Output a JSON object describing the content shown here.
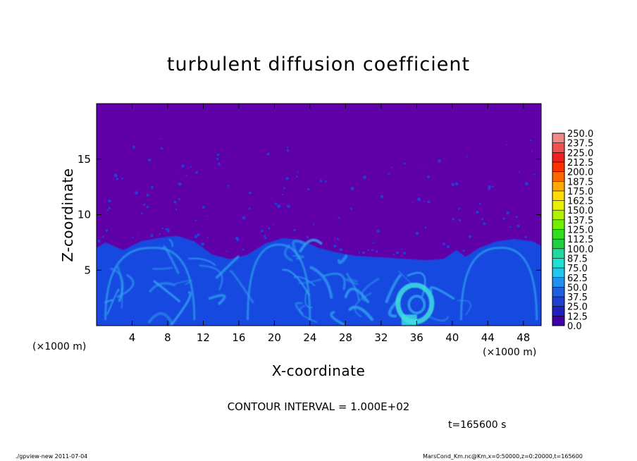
{
  "chart_data": {
    "type": "heatmap",
    "title": "turbulent diffusion coefficient",
    "xlabel": "X-coordinate",
    "ylabel": "Z-coordinate",
    "x_unit": "(×1000 m)",
    "xlim": [
      0,
      50
    ],
    "ylim": [
      0,
      20
    ],
    "x_ticks": [
      "4",
      "8",
      "12",
      "16",
      "20",
      "24",
      "28",
      "32",
      "36",
      "40",
      "44",
      "48"
    ],
    "x_tick_values": [
      4,
      8,
      12,
      16,
      20,
      24,
      28,
      32,
      36,
      40,
      44,
      48
    ],
    "y_ticks": [
      "5",
      "10",
      "15"
    ],
    "y_tick_values": [
      5,
      10,
      15
    ],
    "background_value": 0.0,
    "boundary_layer_top": [
      [
        0,
        7.0
      ],
      [
        1,
        7.5
      ],
      [
        3,
        6.8
      ],
      [
        5,
        7.6
      ],
      [
        7,
        7.9
      ],
      [
        9,
        8.1
      ],
      [
        11,
        7.6
      ],
      [
        13,
        6.4
      ],
      [
        15,
        6.0
      ],
      [
        17,
        6.4
      ],
      [
        19,
        7.4
      ],
      [
        21,
        7.9
      ],
      [
        23,
        7.7
      ],
      [
        25,
        7.0
      ],
      [
        27,
        6.6
      ],
      [
        29,
        6.3
      ],
      [
        31,
        6.2
      ],
      [
        33,
        6.1
      ],
      [
        35,
        6.0
      ],
      [
        37,
        5.9
      ],
      [
        39,
        6.0
      ],
      [
        40.5,
        6.8
      ],
      [
        41.5,
        6.2
      ],
      [
        43,
        7.0
      ],
      [
        45,
        7.6
      ],
      [
        47,
        7.8
      ],
      [
        49,
        7.6
      ],
      [
        50,
        7.2
      ]
    ],
    "colorbar": {
      "levels": [
        "250.0",
        "237.5",
        "225.0",
        "212.5",
        "200.0",
        "187.5",
        "175.0",
        "162.5",
        "150.0",
        "137.5",
        "125.0",
        "112.5",
        "100.0",
        "87.5",
        "75.0",
        "62.5",
        "50.0",
        "37.5",
        "25.0",
        "12.5",
        "0.0"
      ],
      "colors": [
        "#f08a8a",
        "#f05050",
        "#ee2020",
        "#ff3000",
        "#ff6600",
        "#ffaa00",
        "#ffdd00",
        "#e8f000",
        "#b0f000",
        "#70f000",
        "#30e020",
        "#20d040",
        "#20d8a0",
        "#20e0d0",
        "#20c8f0",
        "#2090f0",
        "#2060e0",
        "#2040d0",
        "#2020c0",
        "#4000a8"
      ]
    },
    "contour_interval": "CONTOUR INTERVAL = 1.000E+02",
    "time_label": "t=165600 s"
  },
  "footer": {
    "left": "./gpview-new   2011-07-04",
    "right": "MarsCond_Km.nc@Km,x=0:50000,z=0:20000,t=165600"
  },
  "colors": {
    "background_field": "#6000a8",
    "turbulent_field": "#1848e0",
    "eddy_highlight": "#30a0f0",
    "strong_eddy": "#40e0e0"
  }
}
